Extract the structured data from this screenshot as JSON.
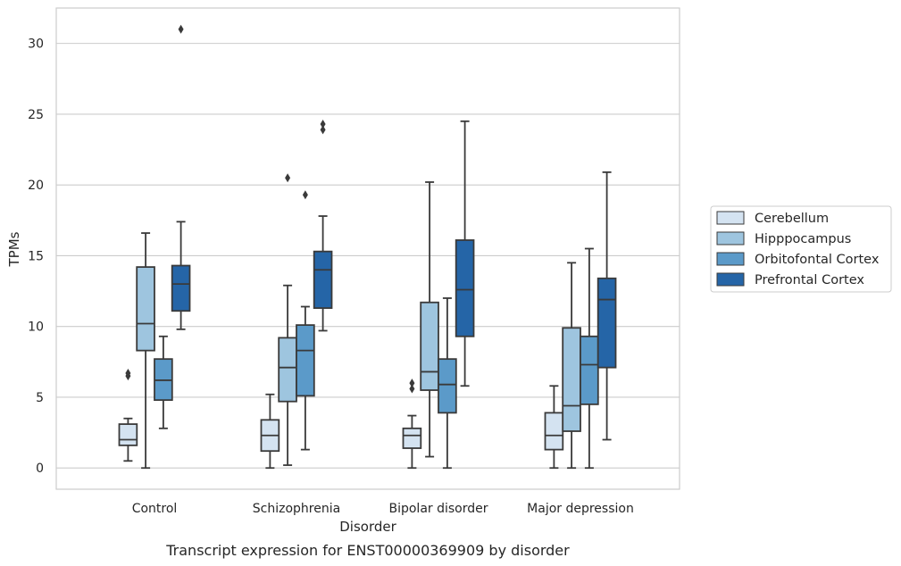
{
  "chart_data": {
    "type": "box",
    "caption": "Transcript expression for ENST00000369909 by disorder",
    "xlabel": "Disorder",
    "ylabel": "TPMs",
    "ylim": [
      -1.5,
      32.5
    ],
    "yticks": [
      0,
      5,
      10,
      15,
      20,
      25,
      30
    ],
    "categories": [
      "Control",
      "Schizophrenia",
      "Bipolar disorder",
      "Major depression"
    ],
    "grid": "horizontal",
    "legend_position": "right",
    "series": [
      {
        "name": "Cerebellum",
        "color": "#d4e3f1",
        "boxes": [
          {
            "whislo": 0.5,
            "q1": 1.6,
            "med": 2.0,
            "q3": 3.1,
            "whishi": 3.5,
            "fliers": [
              6.5,
              6.7
            ]
          },
          {
            "whislo": 0.0,
            "q1": 1.2,
            "med": 2.3,
            "q3": 3.4,
            "whishi": 5.2,
            "fliers": []
          },
          {
            "whislo": 0.0,
            "q1": 1.4,
            "med": 2.3,
            "q3": 2.8,
            "whishi": 3.7,
            "fliers": [
              5.6,
              6.0
            ]
          },
          {
            "whislo": 0.0,
            "q1": 1.3,
            "med": 2.3,
            "q3": 3.9,
            "whishi": 5.8,
            "fliers": []
          }
        ]
      },
      {
        "name": "Hipppocampus",
        "color": "#9ec5df",
        "boxes": [
          {
            "whislo": 0.0,
            "q1": 8.3,
            "med": 10.2,
            "q3": 14.2,
            "whishi": 16.6,
            "fliers": []
          },
          {
            "whislo": 0.2,
            "q1": 4.7,
            "med": 7.1,
            "q3": 9.2,
            "whishi": 12.9,
            "fliers": [
              20.5
            ]
          },
          {
            "whislo": 0.8,
            "q1": 5.5,
            "med": 6.8,
            "q3": 11.7,
            "whishi": 20.2,
            "fliers": []
          },
          {
            "whislo": 0.0,
            "q1": 2.6,
            "med": 4.4,
            "q3": 9.9,
            "whishi": 14.5,
            "fliers": []
          }
        ]
      },
      {
        "name": "Orbitofontal Cortex",
        "color": "#5b9ac9",
        "boxes": [
          {
            "whislo": 2.8,
            "q1": 4.8,
            "med": 6.2,
            "q3": 7.7,
            "whishi": 9.3,
            "fliers": []
          },
          {
            "whislo": 1.3,
            "q1": 5.1,
            "med": 8.3,
            "q3": 10.1,
            "whishi": 11.4,
            "fliers": [
              19.3
            ]
          },
          {
            "whislo": 0.0,
            "q1": 3.9,
            "med": 5.9,
            "q3": 7.7,
            "whishi": 12.0,
            "fliers": []
          },
          {
            "whislo": 0.0,
            "q1": 4.5,
            "med": 7.3,
            "q3": 9.3,
            "whishi": 15.5,
            "fliers": []
          }
        ]
      },
      {
        "name": "Prefrontal Cortex",
        "color": "#2565a7",
        "boxes": [
          {
            "whislo": 9.8,
            "q1": 11.1,
            "med": 13.0,
            "q3": 14.3,
            "whishi": 17.4,
            "fliers": [
              31.0
            ]
          },
          {
            "whislo": 9.7,
            "q1": 11.3,
            "med": 14.0,
            "q3": 15.3,
            "whishi": 17.8,
            "fliers": [
              23.9,
              24.3
            ]
          },
          {
            "whislo": 5.8,
            "q1": 9.3,
            "med": 12.6,
            "q3": 16.1,
            "whishi": 24.5,
            "fliers": []
          },
          {
            "whislo": 2.0,
            "q1": 7.1,
            "med": 11.9,
            "q3": 13.4,
            "whishi": 20.9,
            "fliers": []
          }
        ]
      }
    ]
  }
}
